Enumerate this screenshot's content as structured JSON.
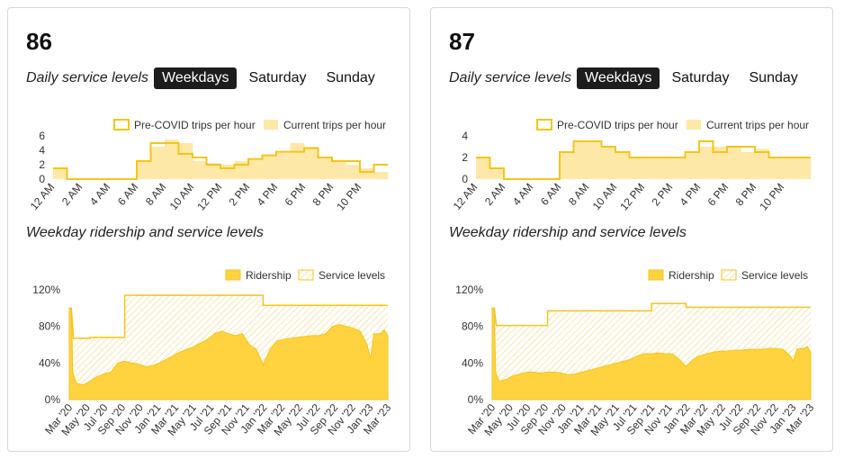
{
  "colors": {
    "accent": "#f5c518",
    "fill_light": "#fde8a8",
    "fill_dark": "#ffd23f",
    "tab_active_bg": "#1d1d1d"
  },
  "cards": [
    {
      "route": "86",
      "service_label": "Daily service levels",
      "tabs": [
        "Weekdays",
        "Saturday",
        "Sunday"
      ],
      "active_tab": 0,
      "ridership_title": "Weekday ridership and service levels",
      "chart_data": [
        {
          "type": "step-area",
          "legend": [
            "Pre-COVID trips per hour",
            "Current trips per hour"
          ],
          "x_ticks": [
            "12 AM",
            "2 AM",
            "4 AM",
            "6 AM",
            "8 AM",
            "10 AM",
            "12 PM",
            "2 PM",
            "4 PM",
            "6 PM",
            "8 PM",
            "10 PM"
          ],
          "y_ticks": [
            "0",
            "2",
            "4",
            "6"
          ],
          "ylim": [
            0,
            6
          ],
          "series": [
            {
              "name": "Pre-COVID trips per hour",
              "values": [
                1.5,
                0,
                0,
                0,
                0,
                0,
                2.5,
                5,
                5,
                3.5,
                3,
                2,
                1.5,
                2,
                2.8,
                3.3,
                3.8,
                3.8,
                4.3,
                3,
                2.5,
                2.5,
                1,
                2
              ]
            },
            {
              "name": "Current trips per hour",
              "values": [
                1.5,
                0,
                0,
                0,
                0,
                0,
                2.5,
                4.5,
                5.5,
                5,
                2.5,
                2.2,
                2,
                2.5,
                2.8,
                3.3,
                3.8,
                5,
                4.5,
                3,
                2.5,
                2,
                1.5,
                1
              ]
            }
          ]
        },
        {
          "type": "area",
          "legend": [
            "Ridership",
            "Service levels"
          ],
          "x_ticks": [
            "Mar '20",
            "May '20",
            "Jul '20",
            "Sep '20",
            "Nov '20",
            "Jan '21",
            "Mar '21",
            "May '21",
            "Jul '21",
            "Sep '21",
            "Nov '21",
            "Jan '22",
            "Mar '22",
            "May '22",
            "Jul '22",
            "Sep '22",
            "Nov '22",
            "Jan '23",
            "Mar '23"
          ],
          "y_ticks": [
            "0%",
            "40%",
            "80%",
            "120%"
          ],
          "ylim": [
            0,
            120
          ],
          "ridership": [
            {
              "t": 0,
              "v": 100
            },
            {
              "t": 0.3,
              "v": 98
            },
            {
              "t": 0.5,
              "v": 30
            },
            {
              "t": 1,
              "v": 18
            },
            {
              "t": 2,
              "v": 16
            },
            {
              "t": 3,
              "v": 20
            },
            {
              "t": 4,
              "v": 25
            },
            {
              "t": 5,
              "v": 28
            },
            {
              "t": 6,
              "v": 30
            },
            {
              "t": 7,
              "v": 40
            },
            {
              "t": 8,
              "v": 42
            },
            {
              "t": 9,
              "v": 40
            },
            {
              "t": 10,
              "v": 39
            },
            {
              "t": 11,
              "v": 36
            },
            {
              "t": 12,
              "v": 37
            },
            {
              "t": 13,
              "v": 40
            },
            {
              "t": 14,
              "v": 44
            },
            {
              "t": 15,
              "v": 48
            },
            {
              "t": 16,
              "v": 52
            },
            {
              "t": 17,
              "v": 55
            },
            {
              "t": 18,
              "v": 58
            },
            {
              "t": 19,
              "v": 62
            },
            {
              "t": 20,
              "v": 66
            },
            {
              "t": 21,
              "v": 72
            },
            {
              "t": 22,
              "v": 75
            },
            {
              "t": 23,
              "v": 72
            },
            {
              "t": 24,
              "v": 70
            },
            {
              "t": 25,
              "v": 72
            },
            {
              "t": 26,
              "v": 60
            },
            {
              "t": 27,
              "v": 55
            },
            {
              "t": 28,
              "v": 38
            },
            {
              "t": 29,
              "v": 55
            },
            {
              "t": 30,
              "v": 64
            },
            {
              "t": 31,
              "v": 66
            },
            {
              "t": 32,
              "v": 67
            },
            {
              "t": 33,
              "v": 68
            },
            {
              "t": 34,
              "v": 69
            },
            {
              "t": 35,
              "v": 70
            },
            {
              "t": 36,
              "v": 70
            },
            {
              "t": 37,
              "v": 72
            },
            {
              "t": 38,
              "v": 80
            },
            {
              "t": 39,
              "v": 82
            },
            {
              "t": 40,
              "v": 80
            },
            {
              "t": 41,
              "v": 78
            },
            {
              "t": 42,
              "v": 75
            },
            {
              "t": 43,
              "v": 60
            },
            {
              "t": 43.5,
              "v": 45
            },
            {
              "t": 44,
              "v": 72
            },
            {
              "t": 45,
              "v": 72
            },
            {
              "t": 45.5,
              "v": 76
            },
            {
              "t": 46,
              "v": 70
            }
          ],
          "service": [
            {
              "t": 0,
              "v": 100
            },
            {
              "t": 0.3,
              "v": 100
            },
            {
              "t": 0.6,
              "v": 67
            },
            {
              "t": 3,
              "v": 67
            },
            {
              "t": 3,
              "v": 68
            },
            {
              "t": 8,
              "v": 68
            },
            {
              "t": 8,
              "v": 114
            },
            {
              "t": 28,
              "v": 114
            },
            {
              "t": 28,
              "v": 103
            },
            {
              "t": 46,
              "v": 103
            }
          ]
        }
      ]
    },
    {
      "route": "87",
      "service_label": "Daily service levels",
      "tabs": [
        "Weekdays",
        "Saturday",
        "Sunday"
      ],
      "active_tab": 0,
      "ridership_title": "Weekday ridership and service levels",
      "chart_data": [
        {
          "type": "step-area",
          "legend": [
            "Pre-COVID trips per hour",
            "Current trips per hour"
          ],
          "x_ticks": [
            "12 AM",
            "2 AM",
            "4 AM",
            "6 AM",
            "8 AM",
            "10 AM",
            "12 PM",
            "2 PM",
            "4 PM",
            "6 PM",
            "8 PM",
            "10 PM"
          ],
          "y_ticks": [
            "0",
            "2",
            "4"
          ],
          "ylim": [
            0,
            4
          ],
          "series": [
            {
              "name": "Pre-COVID trips per hour",
              "values": [
                2,
                1,
                0,
                0,
                0,
                0,
                2.5,
                3.5,
                3.5,
                3,
                2.5,
                2,
                2,
                2,
                2,
                2.5,
                3.5,
                2.5,
                3,
                3,
                2.5,
                2,
                2,
                2
              ]
            },
            {
              "name": "Current trips per hour",
              "values": [
                2,
                1,
                0,
                0,
                0,
                0,
                2.5,
                3.5,
                3.5,
                3,
                2.5,
                2,
                2,
                2,
                2,
                2.5,
                3,
                3,
                3,
                2.5,
                2.8,
                2,
                2,
                2
              ]
            }
          ]
        },
        {
          "type": "area",
          "legend": [
            "Ridership",
            "Service levels"
          ],
          "x_ticks": [
            "Mar '20",
            "May '20",
            "Jul '20",
            "Sep '20",
            "Nov '20",
            "Jan '21",
            "Mar '21",
            "May '21",
            "Jul '21",
            "Sep '21",
            "Nov '21",
            "Jan '22",
            "Mar '22",
            "May '22",
            "Jul '22",
            "Sep '22",
            "Nov '22",
            "Jan '23",
            "Mar '23"
          ],
          "y_ticks": [
            "0%",
            "40%",
            "80%",
            "120%"
          ],
          "ylim": [
            0,
            120
          ],
          "ridership": [
            {
              "t": 0,
              "v": 100
            },
            {
              "t": 0.3,
              "v": 98
            },
            {
              "t": 0.5,
              "v": 30
            },
            {
              "t": 1,
              "v": 20
            },
            {
              "t": 2,
              "v": 22
            },
            {
              "t": 3,
              "v": 26
            },
            {
              "t": 4,
              "v": 28
            },
            {
              "t": 5,
              "v": 30
            },
            {
              "t": 6,
              "v": 30
            },
            {
              "t": 7,
              "v": 29
            },
            {
              "t": 8,
              "v": 30
            },
            {
              "t": 9,
              "v": 30
            },
            {
              "t": 10,
              "v": 29
            },
            {
              "t": 11,
              "v": 27
            },
            {
              "t": 12,
              "v": 28
            },
            {
              "t": 13,
              "v": 30
            },
            {
              "t": 14,
              "v": 32
            },
            {
              "t": 15,
              "v": 34
            },
            {
              "t": 16,
              "v": 36
            },
            {
              "t": 17,
              "v": 38
            },
            {
              "t": 18,
              "v": 40
            },
            {
              "t": 19,
              "v": 42
            },
            {
              "t": 20,
              "v": 44
            },
            {
              "t": 21,
              "v": 48
            },
            {
              "t": 22,
              "v": 50
            },
            {
              "t": 23,
              "v": 50
            },
            {
              "t": 24,
              "v": 51
            },
            {
              "t": 25,
              "v": 50
            },
            {
              "t": 26,
              "v": 50
            },
            {
              "t": 27,
              "v": 44
            },
            {
              "t": 28,
              "v": 36
            },
            {
              "t": 29,
              "v": 44
            },
            {
              "t": 30,
              "v": 48
            },
            {
              "t": 31,
              "v": 50
            },
            {
              "t": 32,
              "v": 52
            },
            {
              "t": 33,
              "v": 53
            },
            {
              "t": 34,
              "v": 53
            },
            {
              "t": 35,
              "v": 54
            },
            {
              "t": 36,
              "v": 54
            },
            {
              "t": 37,
              "v": 55
            },
            {
              "t": 38,
              "v": 55
            },
            {
              "t": 39,
              "v": 55
            },
            {
              "t": 40,
              "v": 56
            },
            {
              "t": 41,
              "v": 56
            },
            {
              "t": 42,
              "v": 55
            },
            {
              "t": 43,
              "v": 48
            },
            {
              "t": 43.5,
              "v": 42
            },
            {
              "t": 44,
              "v": 55
            },
            {
              "t": 45,
              "v": 56
            },
            {
              "t": 45.5,
              "v": 58
            },
            {
              "t": 46,
              "v": 52
            }
          ],
          "service": [
            {
              "t": 0,
              "v": 100
            },
            {
              "t": 0.3,
              "v": 100
            },
            {
              "t": 0.6,
              "v": 81
            },
            {
              "t": 8,
              "v": 81
            },
            {
              "t": 8,
              "v": 97
            },
            {
              "t": 23,
              "v": 97
            },
            {
              "t": 23,
              "v": 105
            },
            {
              "t": 28,
              "v": 105
            },
            {
              "t": 28,
              "v": 101
            },
            {
              "t": 46,
              "v": 101
            }
          ]
        }
      ]
    }
  ]
}
